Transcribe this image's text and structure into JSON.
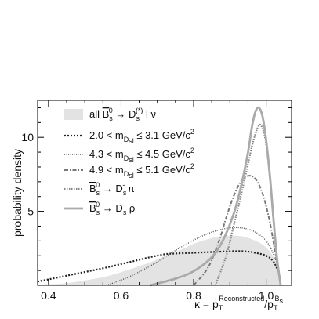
{
  "chart_data": {
    "type": "line",
    "xlabel": {
      "lhs": "κ = p",
      "sub1": "T",
      "sup1": "Reconstructed",
      "slash": "/p",
      "sub2": "T",
      "sup2": "B",
      "sup2sub": "s"
    },
    "ylabel": "probability density",
    "xlim": [
      0.37,
      1.07
    ],
    "ylim": [
      0,
      12.5
    ],
    "x_ticks": [
      "0.4",
      "0.6",
      "0.8",
      "1.0"
    ],
    "y_ticks": [
      "5",
      "10"
    ],
    "y_tick_values": [
      5,
      10
    ],
    "x_tick_values": [
      0.4,
      0.6,
      0.8,
      1.0
    ],
    "legend": [
      {
        "name": "all",
        "math": "B̄s0 → Ds(*) l ν",
        "style": "filled-gray"
      },
      {
        "name": "2.0 < m_Dsl ≤ 3.1 GeV/c²",
        "lo": "2.0",
        "hi": "3.1",
        "style": "dotted-thick"
      },
      {
        "name": "4.3 < m_Dsl ≤ 4.5 GeV/c²",
        "lo": "4.3",
        "hi": "4.5",
        "style": "dotted-fine"
      },
      {
        "name": "4.9 < m_Dsl ≤ 5.1 GeV/c²",
        "lo": "4.9",
        "hi": "5.1",
        "style": "dash-dot"
      },
      {
        "name": "B̄s0 → Ds π",
        "style": "dotted-medium"
      },
      {
        "name": "B̄s0 → Ds ρ",
        "style": "solid-gray"
      }
    ],
    "legend_text": {
      "all": "all",
      "B": "B",
      "Bsub": "s",
      "Bsup": "0",
      "arrow": "→",
      "D": "D",
      "Dsub": "s",
      "Dsup": "(*)",
      "lnu": "l ν",
      "lt": "<",
      "le": "≤",
      "m": "m",
      "msub": "D",
      "msubsub": "s",
      "msubl": "l",
      "unit": "GeV/c",
      "unitsup": "2",
      "pi": "π",
      "rho": "ρ",
      "Dpisup": "-"
    },
    "series": [
      {
        "name": "all B̄s0 → Ds(*) l ν",
        "style": "filled-gray",
        "x": [
          0.37,
          0.45,
          0.55,
          0.62,
          0.68,
          0.73,
          0.77,
          0.8,
          0.83,
          0.86,
          0.89,
          0.92,
          0.95,
          0.98,
          1.0,
          1.02,
          1.035,
          1.04
        ],
        "y": [
          0.05,
          0.15,
          0.55,
          1.05,
          1.55,
          2.05,
          2.45,
          2.8,
          3.05,
          3.25,
          3.35,
          3.35,
          3.2,
          2.9,
          2.55,
          1.9,
          0.9,
          0.0
        ]
      },
      {
        "name": "2.0 < m_Dsl ≤ 3.1 GeV/c²",
        "style": "dotted-thick",
        "x": [
          0.37,
          0.45,
          0.55,
          0.62,
          0.68,
          0.72,
          0.75,
          0.8,
          0.85,
          0.9,
          0.94,
          0.97,
          1.0,
          1.02,
          1.035,
          1.04
        ],
        "y": [
          0.25,
          0.65,
          1.15,
          1.55,
          1.9,
          2.1,
          2.15,
          2.2,
          2.25,
          2.3,
          2.3,
          2.2,
          2.0,
          1.6,
          0.8,
          0.0
        ]
      },
      {
        "name": "4.3 < m_Dsl ≤ 4.5 GeV/c²",
        "style": "dotted-fine",
        "x": [
          0.56,
          0.62,
          0.68,
          0.72,
          0.76,
          0.8,
          0.84,
          0.88,
          0.91,
          0.94,
          0.97,
          1.0,
          1.02,
          1.035,
          1.04
        ],
        "y": [
          0.0,
          0.55,
          1.3,
          1.9,
          2.5,
          3.05,
          3.5,
          3.8,
          3.9,
          3.85,
          3.6,
          3.0,
          2.1,
          1.0,
          0.0
        ]
      },
      {
        "name": "4.9 < m_Dsl ≤ 5.1 GeV/c²",
        "style": "dash-dot",
        "x": [
          0.8,
          0.84,
          0.87,
          0.89,
          0.91,
          0.93,
          0.95,
          0.97,
          0.99,
          1.01,
          1.025,
          1.035,
          1.04
        ],
        "y": [
          0.0,
          1.2,
          3.0,
          4.6,
          6.0,
          7.0,
          7.4,
          7.2,
          6.2,
          4.3,
          2.2,
          0.8,
          0.0
        ]
      },
      {
        "name": "B̄s0 → Ds π",
        "style": "dotted-medium",
        "x": [
          0.86,
          0.89,
          0.91,
          0.93,
          0.95,
          0.965,
          0.98,
          0.99,
          1.0,
          1.01,
          1.02,
          1.03,
          1.04
        ],
        "y": [
          0.0,
          2.0,
          4.0,
          6.0,
          8.2,
          9.8,
          10.8,
          10.6,
          9.5,
          7.3,
          4.6,
          1.8,
          0.0
        ]
      },
      {
        "name": "B̄s0 → Ds ρ",
        "style": "solid-gray",
        "x": [
          0.68,
          0.75,
          0.8,
          0.85,
          0.88,
          0.91,
          0.93,
          0.95,
          0.96,
          0.97,
          0.98,
          0.99,
          1.0,
          1.01,
          1.02,
          1.03,
          1.04
        ],
        "y": [
          0.0,
          0.45,
          0.95,
          1.9,
          3.0,
          4.8,
          6.6,
          9.0,
          10.6,
          11.7,
          12.0,
          11.4,
          9.8,
          7.5,
          4.5,
          1.8,
          0.0
        ]
      }
    ]
  }
}
